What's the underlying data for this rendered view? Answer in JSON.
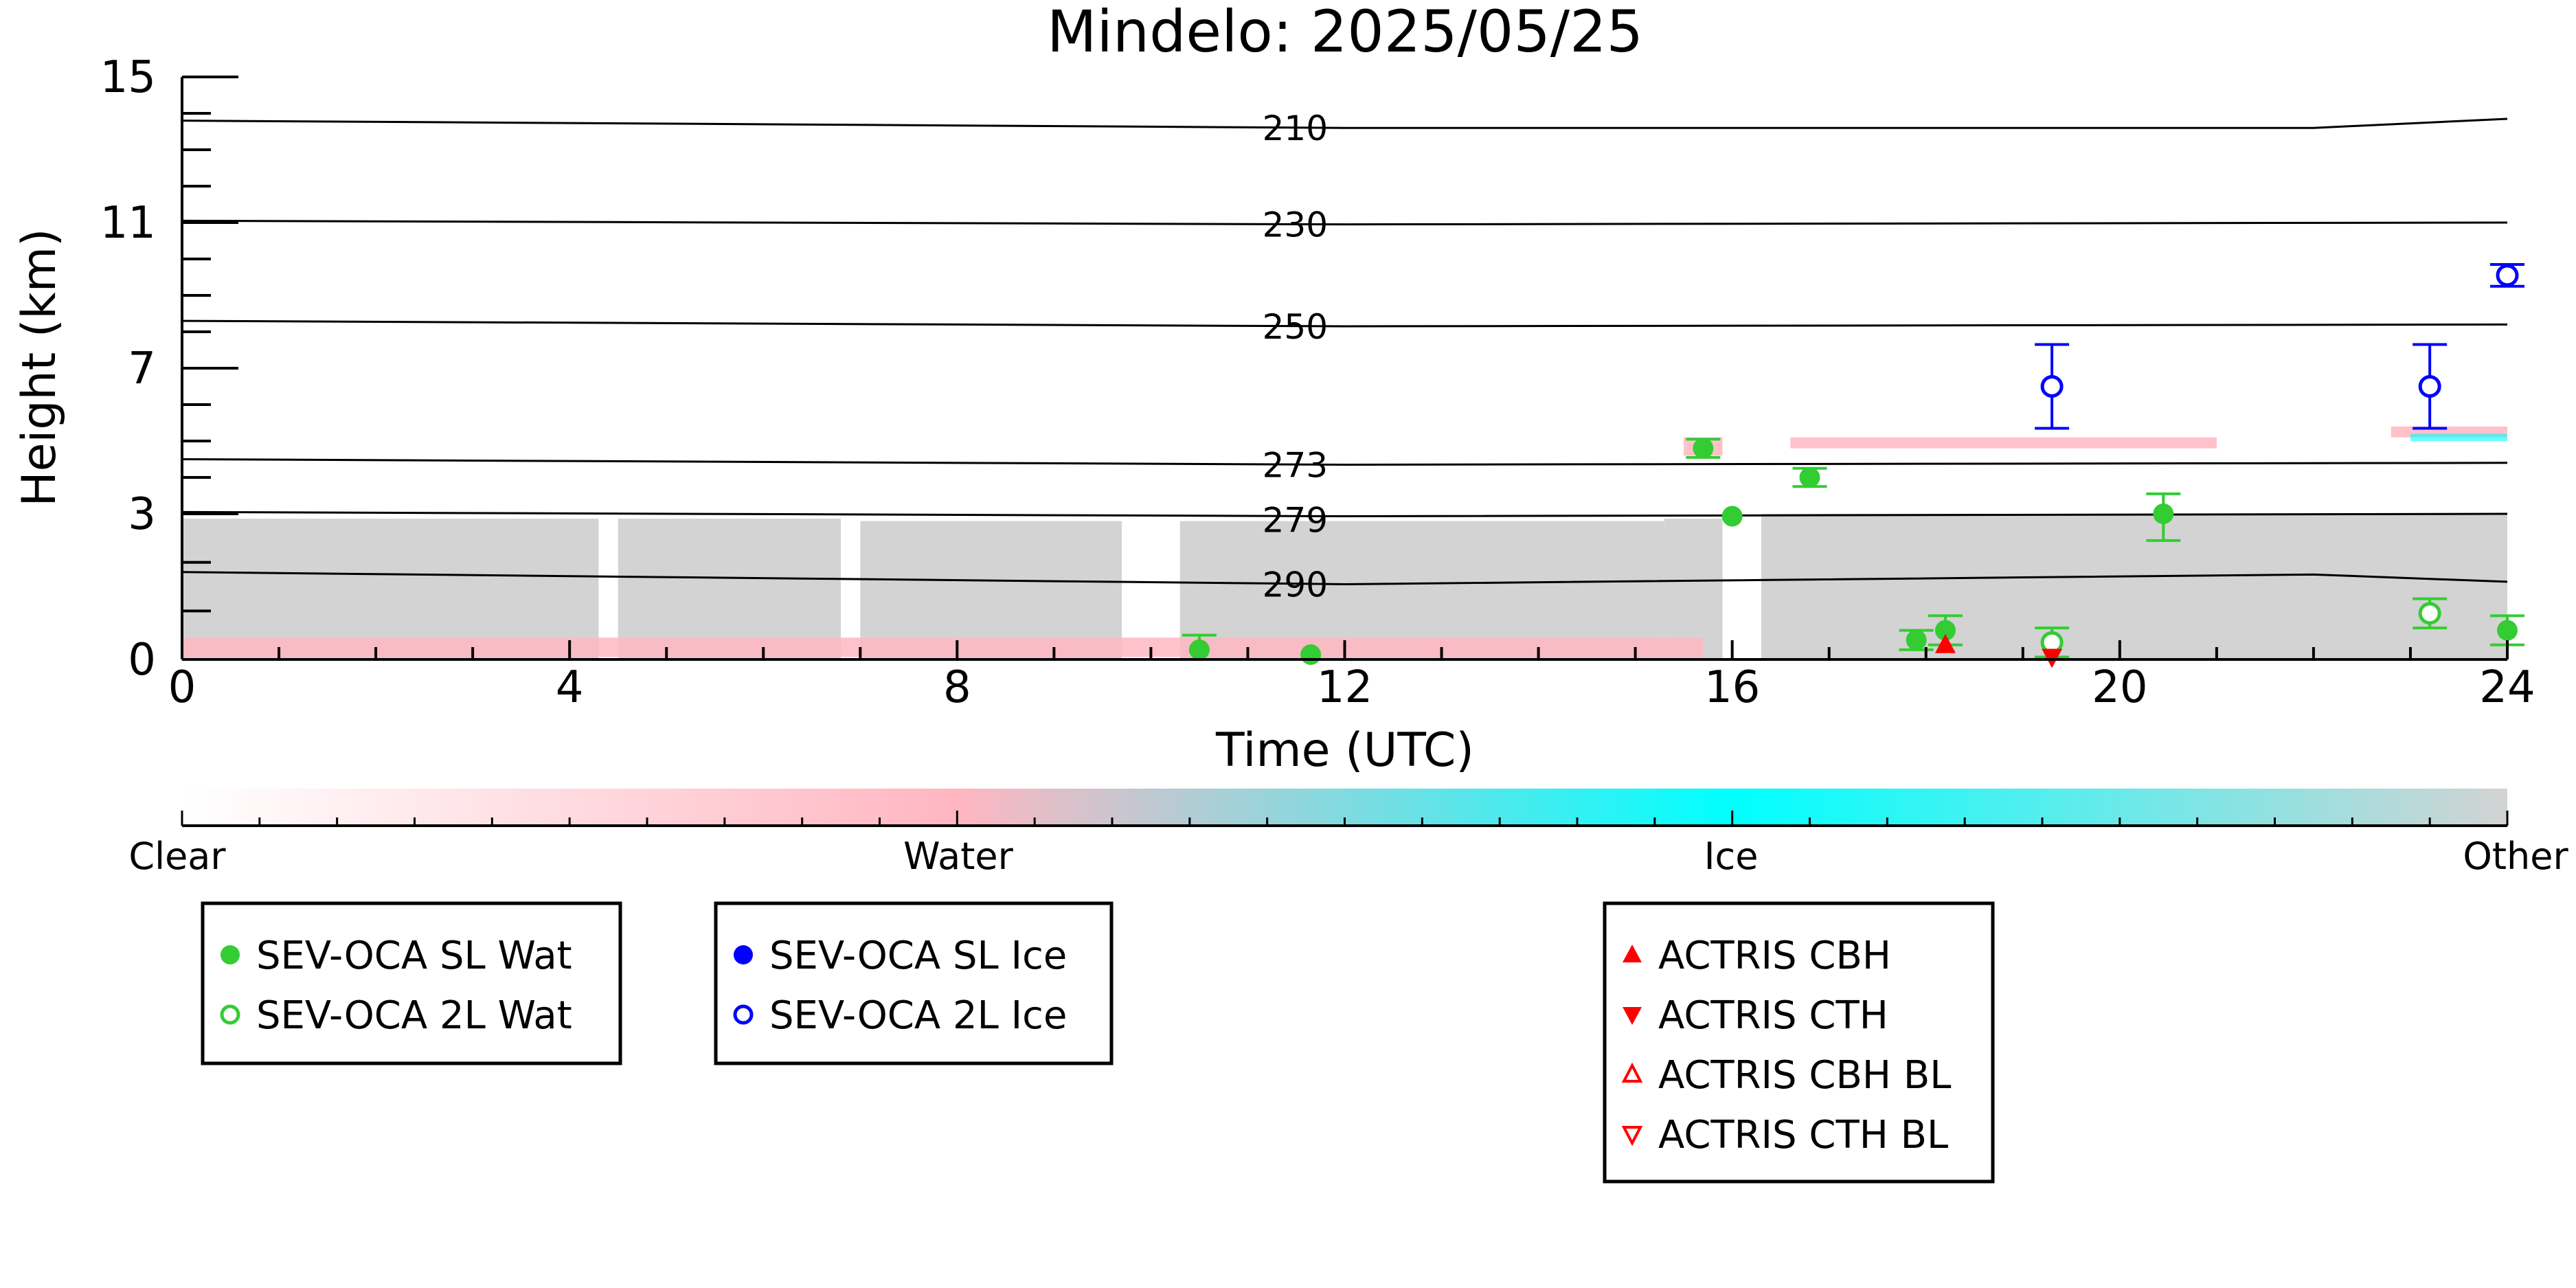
{
  "chart_data": {
    "type": "scatter",
    "title": "Mindelo: 2025/05/25",
    "xlabel": "Time (UTC)",
    "ylabel": "Height (km)",
    "xlim": [
      0,
      24
    ],
    "ylim": [
      0,
      15
    ],
    "x_ticks": [
      0,
      4,
      8,
      12,
      16,
      20,
      24
    ],
    "y_ticks": [
      0,
      3,
      7,
      11,
      15
    ],
    "y_tick_labels": [
      "0",
      "3",
      "7",
      "11",
      "15"
    ],
    "y_scale_note": "piecewise: 0-3 km occupies 25%, 3-15 km linear",
    "colors": {
      "water_symbol": "#33cc33",
      "ice_symbol": "#0000ff",
      "actris": "#ff0000",
      "clear": "#ffffff",
      "water": "#ffb6c1",
      "ice": "#00ffff",
      "other": "#d3d3d3"
    },
    "temperature_contours": [
      {
        "label": "210",
        "x": [
          0,
          12,
          22,
          24
        ],
        "y": [
          13.8,
          13.6,
          13.6,
          13.85
        ]
      },
      {
        "label": "230",
        "x": [
          0,
          12,
          24
        ],
        "y": [
          11.05,
          10.95,
          11.0
        ]
      },
      {
        "label": "250",
        "x": [
          0,
          12,
          24
        ],
        "y": [
          8.3,
          8.15,
          8.2
        ]
      },
      {
        "label": "273",
        "x": [
          0,
          12,
          24
        ],
        "y": [
          4.5,
          4.35,
          4.4
        ]
      },
      {
        "label": "279",
        "x": [
          0,
          12,
          24
        ],
        "y": [
          3.05,
          2.95,
          3.0
        ]
      },
      {
        "label": "290",
        "x": [
          0,
          12,
          22,
          24
        ],
        "y": [
          1.8,
          1.55,
          1.75,
          1.6
        ]
      }
    ],
    "classification_mask": {
      "other_layer": [
        {
          "x0": 0,
          "x1": 4.3,
          "top": 2.9
        },
        {
          "x0": 4.5,
          "x1": 6.8,
          "top": 2.9
        },
        {
          "x0": 7.0,
          "x1": 9.7,
          "top": 2.85
        },
        {
          "x0": 10.3,
          "x1": 15.3,
          "top": 2.85
        },
        {
          "x0": 15.3,
          "x1": 15.9,
          "top": 2.9
        },
        {
          "x0": 16.3,
          "x1": 24,
          "top": 3.0
        }
      ],
      "water_patches": [
        {
          "x0": 0,
          "x1": 15.7,
          "y0": 0.05,
          "y1": 0.45
        },
        {
          "x0": 15.5,
          "x1": 15.9,
          "y0": 4.6,
          "y1": 5.1
        },
        {
          "x0": 16.6,
          "x1": 21.0,
          "y0": 4.8,
          "y1": 5.1
        },
        {
          "x0": 22.8,
          "x1": 24,
          "y0": 5.1,
          "y1": 5.4
        }
      ],
      "ice_patches": [
        {
          "x0": 23.0,
          "x1": 24,
          "y0": 5.0,
          "y1": 5.2
        }
      ]
    },
    "series": [
      {
        "name": "SEV-OCA SL Wat",
        "marker": "filled-circle",
        "color": "#33cc33",
        "points": [
          {
            "x": 10.5,
            "y": 0.2,
            "err": 0.3
          },
          {
            "x": 11.65,
            "y": 0.1,
            "err": 0
          },
          {
            "x": 15.7,
            "y": 4.8,
            "err": 0.25
          },
          {
            "x": 16.0,
            "y": 2.95,
            "err": 0
          },
          {
            "x": 16.8,
            "y": 4.0,
            "err": 0.25
          },
          {
            "x": 17.9,
            "y": 0.4,
            "err": 0.2
          },
          {
            "x": 18.2,
            "y": 0.6,
            "err": 0.3
          },
          {
            "x": 20.45,
            "y": 3.0,
            "err": 0.55
          },
          {
            "x": 24.0,
            "y": 0.6,
            "err": 0.3
          }
        ]
      },
      {
        "name": "SEV-OCA 2L Wat",
        "marker": "open-circle",
        "color": "#33cc33",
        "points": [
          {
            "x": 19.3,
            "y": 0.35,
            "err": 0.3
          },
          {
            "x": 23.2,
            "y": 0.95,
            "err": 0.3
          }
        ]
      },
      {
        "name": "SEV-OCA SL Ice",
        "marker": "filled-circle",
        "color": "#0000ff",
        "points": []
      },
      {
        "name": "SEV-OCA 2L Ice",
        "marker": "open-circle",
        "color": "#0000ff",
        "points": [
          {
            "x": 19.3,
            "y": 6.5,
            "err": 1.15
          },
          {
            "x": 23.2,
            "y": 6.5,
            "err": 1.15
          },
          {
            "x": 24.0,
            "y": 9.55,
            "err": 0.3
          }
        ]
      },
      {
        "name": "ACTRIS CBH",
        "marker": "triangle-up",
        "color": "#ff0000",
        "points": [
          {
            "x": 18.2,
            "y": 0.3
          }
        ]
      },
      {
        "name": "ACTRIS CTH",
        "marker": "triangle-down",
        "color": "#ff0000",
        "points": [
          {
            "x": 19.3,
            "y": 0.05
          }
        ]
      },
      {
        "name": "ACTRIS CBH BL",
        "marker": "open-triangle-up",
        "color": "#ff0000",
        "points": []
      },
      {
        "name": "ACTRIS CTH BL",
        "marker": "open-triangle-down",
        "color": "#ff0000",
        "points": []
      }
    ],
    "colorbar": {
      "labels": [
        "Clear",
        "Water",
        "Ice",
        "Other"
      ],
      "stops": [
        "#ffffff",
        "#ffb6c1",
        "#00ffff",
        "#d3d3d3"
      ]
    },
    "legends": [
      {
        "entries": [
          "SEV-OCA SL Wat",
          "SEV-OCA 2L Wat"
        ]
      },
      {
        "entries": [
          "SEV-OCA SL Ice",
          "SEV-OCA 2L Ice"
        ]
      },
      {
        "entries": [
          "ACTRIS CBH",
          "ACTRIS CTH",
          "ACTRIS CBH BL",
          "ACTRIS CTH BL"
        ]
      }
    ]
  }
}
